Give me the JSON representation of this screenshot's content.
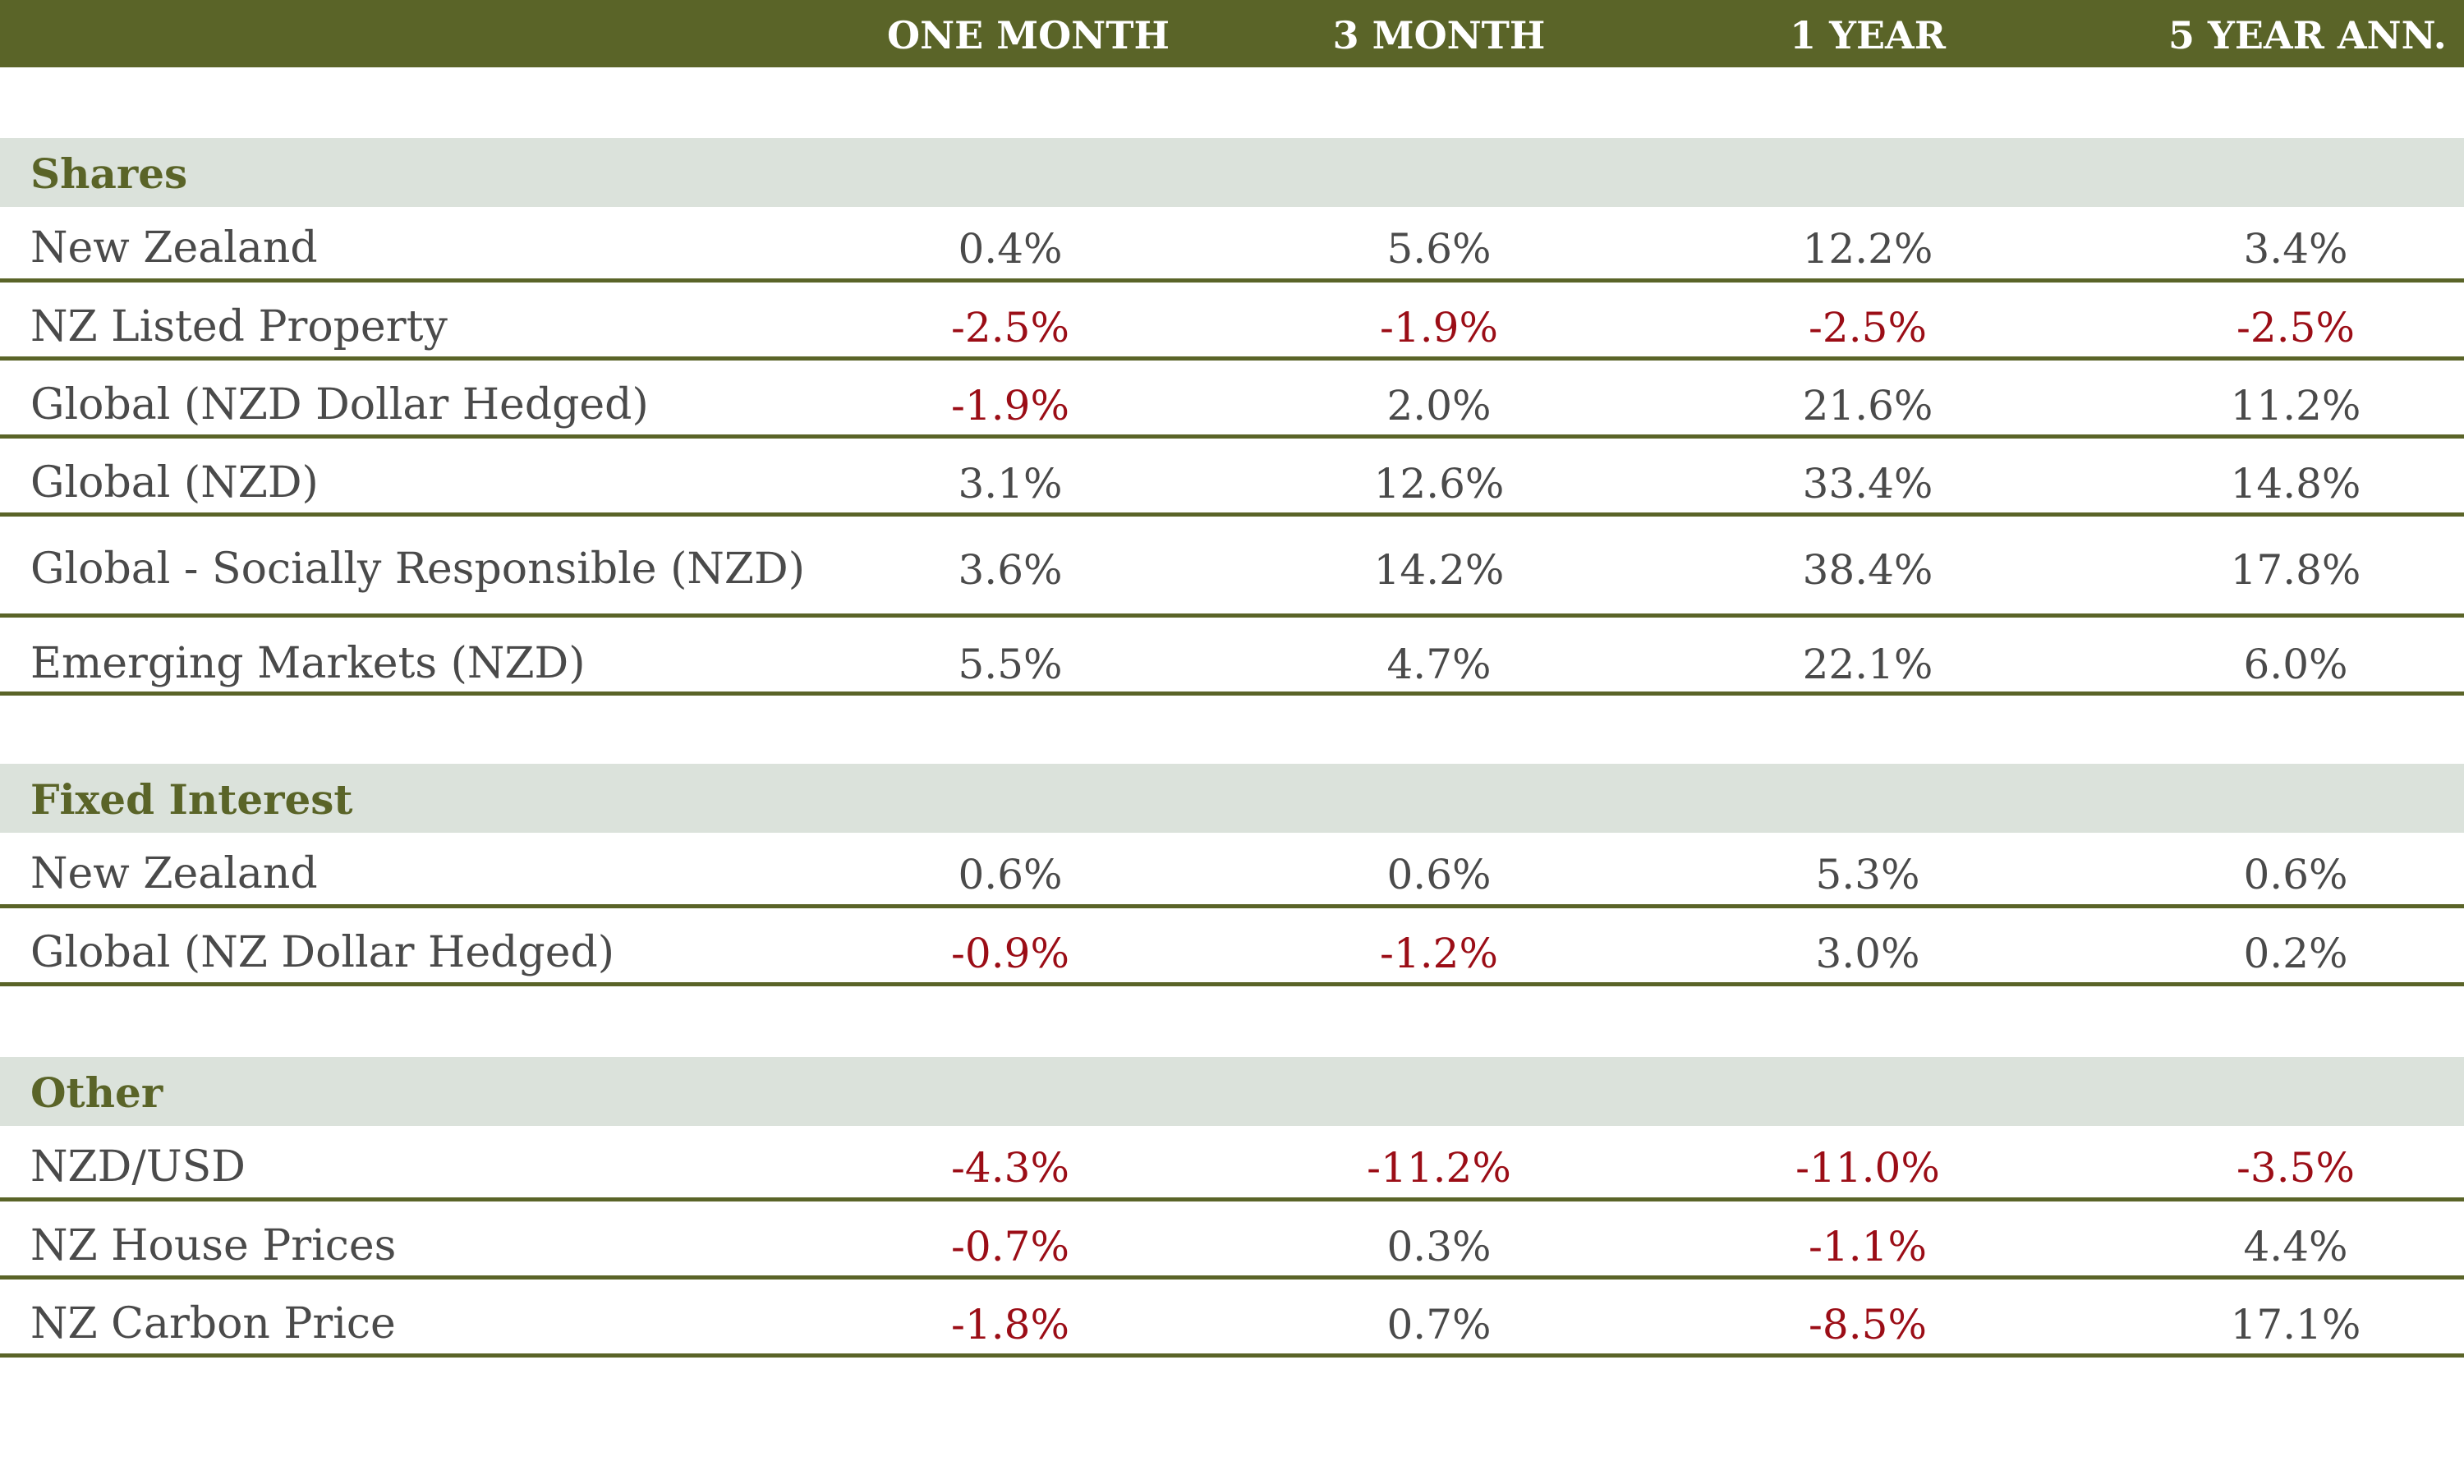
{
  "chart_data": {
    "type": "table",
    "columns": [
      "ONE MONTH",
      "3 MONTH",
      "1 YEAR",
      "5 YEAR ANN."
    ],
    "sections": [
      {
        "title": "Shares",
        "rows": [
          {
            "label": "New Zealand",
            "values": [
              "0.4%",
              "5.6%",
              "12.2%",
              "3.4%"
            ]
          },
          {
            "label": "NZ Listed Property",
            "values": [
              "-2.5%",
              "-1.9%",
              "-2.5%",
              "-2.5%"
            ]
          },
          {
            "label": "Global (NZD Dollar Hedged)",
            "values": [
              "-1.9%",
              "2.0%",
              "21.6%",
              "11.2%"
            ]
          },
          {
            "label": "Global (NZD)",
            "values": [
              "3.1%",
              "12.6%",
              "33.4%",
              "14.8%"
            ]
          },
          {
            "label": "Global - Socially Responsible (NZD)",
            "values": [
              "3.6%",
              "14.2%",
              "38.4%",
              "17.8%"
            ]
          },
          {
            "label": "Emerging Markets (NZD)",
            "values": [
              "5.5%",
              "4.7%",
              "22.1%",
              "6.0%"
            ]
          }
        ]
      },
      {
        "title": "Fixed Interest",
        "rows": [
          {
            "label": "New Zealand",
            "values": [
              "0.6%",
              "0.6%",
              "5.3%",
              "0.6%"
            ]
          },
          {
            "label": "Global (NZ Dollar Hedged)",
            "values": [
              "-0.9%",
              "-1.2%",
              "3.0%",
              "0.2%"
            ]
          }
        ]
      },
      {
        "title": "Other",
        "rows": [
          {
            "label": "NZD/USD",
            "values": [
              "-4.3%",
              "-11.2%",
              "-11.0%",
              "-3.5%"
            ]
          },
          {
            "label": "NZ House Prices",
            "values": [
              "-0.7%",
              "0.3%",
              "-1.1%",
              "4.4%"
            ]
          },
          {
            "label": "NZ Carbon Price",
            "values": [
              "-1.8%",
              "0.7%",
              "-8.5%",
              "17.1%"
            ]
          }
        ]
      }
    ]
  },
  "colors": {
    "header_bg": "#5a6428",
    "section_band": "#dbe2db",
    "section_title": "#5a6428",
    "negative": "#9b0d16",
    "text": "#4a4a4a",
    "rule": "#5a6428"
  }
}
